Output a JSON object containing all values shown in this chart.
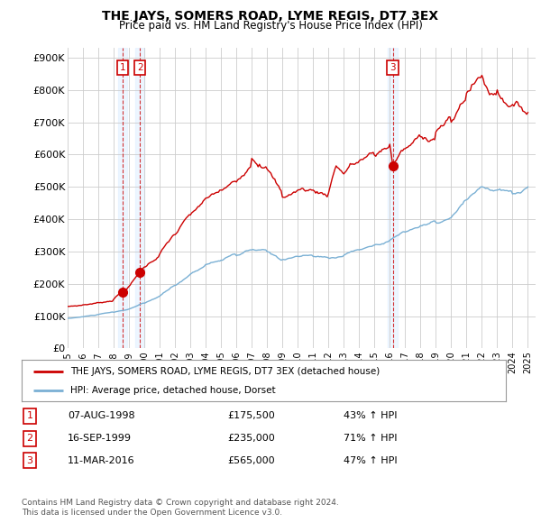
{
  "title": "THE JAYS, SOMERS ROAD, LYME REGIS, DT7 3EX",
  "subtitle": "Price paid vs. HM Land Registry's House Price Index (HPI)",
  "ylabel_ticks": [
    "£0",
    "£100K",
    "£200K",
    "£300K",
    "£400K",
    "£500K",
    "£600K",
    "£700K",
    "£800K",
    "£900K"
  ],
  "ytick_vals": [
    0,
    100000,
    200000,
    300000,
    400000,
    500000,
    600000,
    700000,
    800000,
    900000
  ],
  "ylim": [
    0,
    930000
  ],
  "xlim_start": 1995.0,
  "xlim_end": 2025.5,
  "sales": [
    {
      "num": 1,
      "date_str": "07-AUG-1998",
      "price": 175500,
      "year": 1998.6,
      "pct": "43%"
    },
    {
      "num": 2,
      "date_str": "16-SEP-1999",
      "price": 235000,
      "year": 1999.71,
      "pct": "71%"
    },
    {
      "num": 3,
      "date_str": "11-MAR-2016",
      "price": 565000,
      "year": 2016.19,
      "pct": "47%"
    }
  ],
  "legend_entries": [
    "THE JAYS, SOMERS ROAD, LYME REGIS, DT7 3EX (detached house)",
    "HPI: Average price, detached house, Dorset"
  ],
  "footnote1": "Contains HM Land Registry data © Crown copyright and database right 2024.",
  "footnote2": "This data is licensed under the Open Government Licence v3.0.",
  "red_color": "#cc0000",
  "blue_color": "#7ab0d4",
  "background_color": "#ffffff",
  "grid_color": "#cccccc",
  "xticks": [
    1995,
    1996,
    1997,
    1998,
    1999,
    2000,
    2001,
    2002,
    2003,
    2004,
    2005,
    2006,
    2007,
    2008,
    2009,
    2010,
    2011,
    2012,
    2013,
    2014,
    2015,
    2016,
    2017,
    2018,
    2019,
    2020,
    2021,
    2022,
    2023,
    2024,
    2025
  ]
}
